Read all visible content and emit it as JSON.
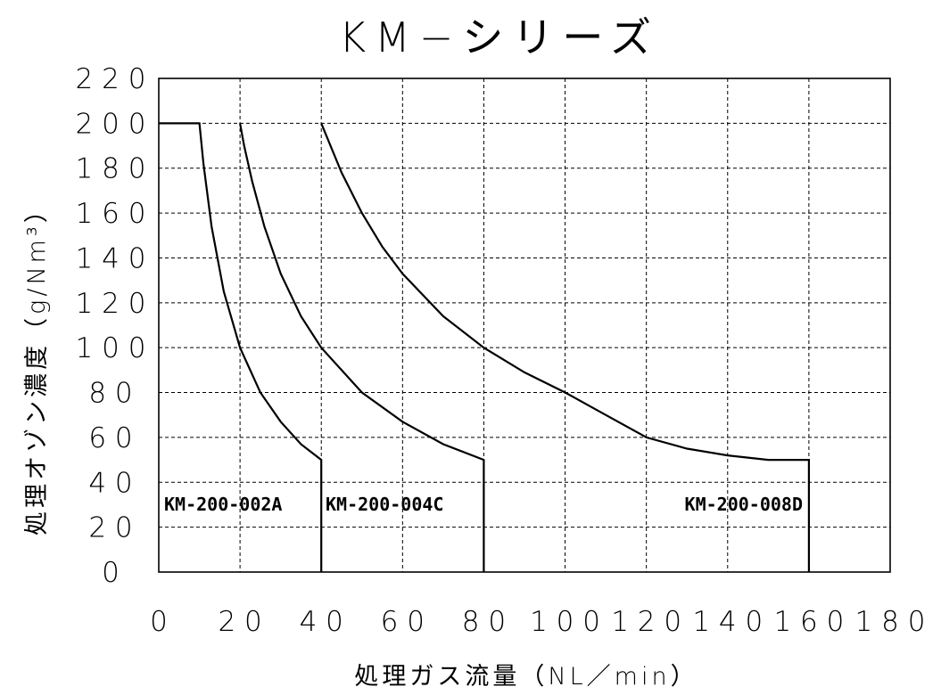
{
  "chart_data": {
    "type": "line",
    "title": "KM−シリーズ",
    "xlabel": "処理ガス流量（NL／min）",
    "ylabel": "処理オゾン濃度（g/Nm³）",
    "xlim": [
      0,
      180
    ],
    "ylim": [
      0,
      220
    ],
    "xticks": [
      0,
      20,
      40,
      60,
      80,
      100,
      120,
      140,
      160,
      180
    ],
    "yticks": [
      0,
      20,
      40,
      60,
      80,
      100,
      120,
      140,
      160,
      180,
      200,
      220
    ],
    "grid": true,
    "series": [
      {
        "name": "KM-200-002A",
        "x": [
          0,
          10,
          11,
          13,
          16,
          20,
          25,
          30,
          35,
          40,
          40
        ],
        "y": [
          200,
          200,
          182,
          154,
          125,
          100,
          80,
          67,
          57,
          50,
          0
        ]
      },
      {
        "name": "KM-200-004C",
        "x": [
          20,
          20,
          21,
          23,
          26,
          30,
          35,
          40,
          50,
          60,
          70,
          80,
          80
        ],
        "y": [
          200,
          200,
          190,
          174,
          154,
          133,
          114,
          100,
          80,
          67,
          57,
          50,
          0
        ]
      },
      {
        "name": "KM-200-008D",
        "x": [
          40,
          45,
          50,
          55,
          60,
          70,
          80,
          90,
          100,
          110,
          120,
          130,
          140,
          150,
          160,
          160
        ],
        "y": [
          200,
          178,
          160,
          145,
          133,
          114,
          100,
          89,
          80,
          70,
          60,
          55,
          52,
          50,
          50,
          0
        ]
      }
    ]
  }
}
